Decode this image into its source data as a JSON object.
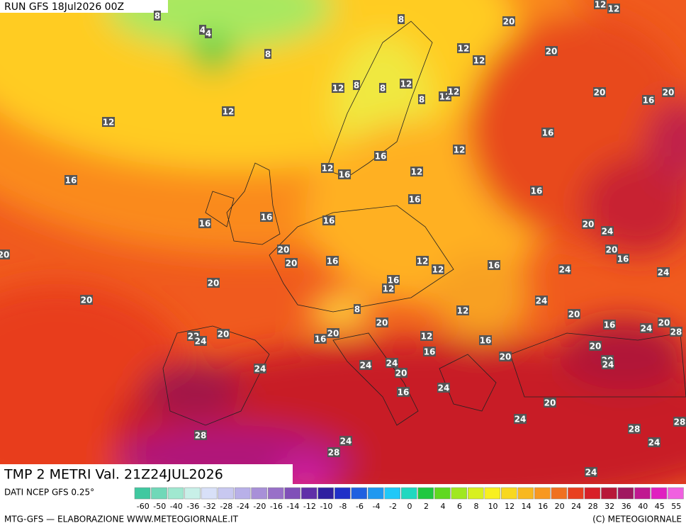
{
  "header": {
    "run": "RUN GFS 18Jul2026 00Z",
    "title": "TMP 2 METRI Val. 21Z24JUL2026"
  },
  "footer": {
    "source": "DATI NCEP GFS 0.25°",
    "credit": "MTG-GFS — ELABORAZIONE WWW.METEOGIORNALE.IT",
    "copyright": "(C) METEOGIORNALE"
  },
  "legend": {
    "labels": [
      -60,
      -50,
      -40,
      -36,
      -32,
      -28,
      -24,
      -20,
      -16,
      -14,
      -12,
      -10,
      -8,
      -6,
      -4,
      -2,
      0,
      2,
      4,
      6,
      8,
      10,
      12,
      14,
      16,
      20,
      24,
      28,
      32,
      36,
      40,
      45,
      55
    ],
    "colors": [
      "#40c8a0",
      "#70d8b8",
      "#a0e8d0",
      "#c8f0e8",
      "#d8e0f8",
      "#c8c8f0",
      "#b8b0e8",
      "#a890d8",
      "#9870c8",
      "#8050b8",
      "#6030a8",
      "#3020a0",
      "#2030c8",
      "#2060e0",
      "#2098f0",
      "#20c8f8",
      "#20d8c0",
      "#20c840",
      "#60d820",
      "#a0e820",
      "#d8f020",
      "#f8f020",
      "#f8d820",
      "#f8b820",
      "#f89820",
      "#f07020",
      "#e84020",
      "#d82028",
      "#b81838",
      "#a01860",
      "#c01890",
      "#e020c0",
      "#f060e0"
    ]
  },
  "map": {
    "contour_labels": [
      8,
      4,
      4,
      8,
      8,
      20,
      20,
      12,
      12,
      12,
      12,
      12,
      8,
      8,
      12,
      8,
      12,
      12,
      20,
      16,
      20,
      12,
      12,
      16,
      12,
      16,
      12,
      16,
      12,
      16,
      16,
      16,
      16,
      16,
      16,
      20,
      24,
      20,
      20,
      16,
      12,
      12,
      16,
      20,
      16,
      24,
      24,
      16,
      12,
      20,
      20,
      24,
      12,
      8,
      20,
      16,
      24,
      20,
      28,
      20,
      20,
      16,
      20,
      22,
      24,
      12,
      16,
      16,
      20,
      20,
      20,
      24,
      24,
      24,
      24,
      20,
      16,
      24,
      20,
      24,
      28,
      28,
      28,
      24,
      28,
      24,
      24,
      20
    ]
  }
}
